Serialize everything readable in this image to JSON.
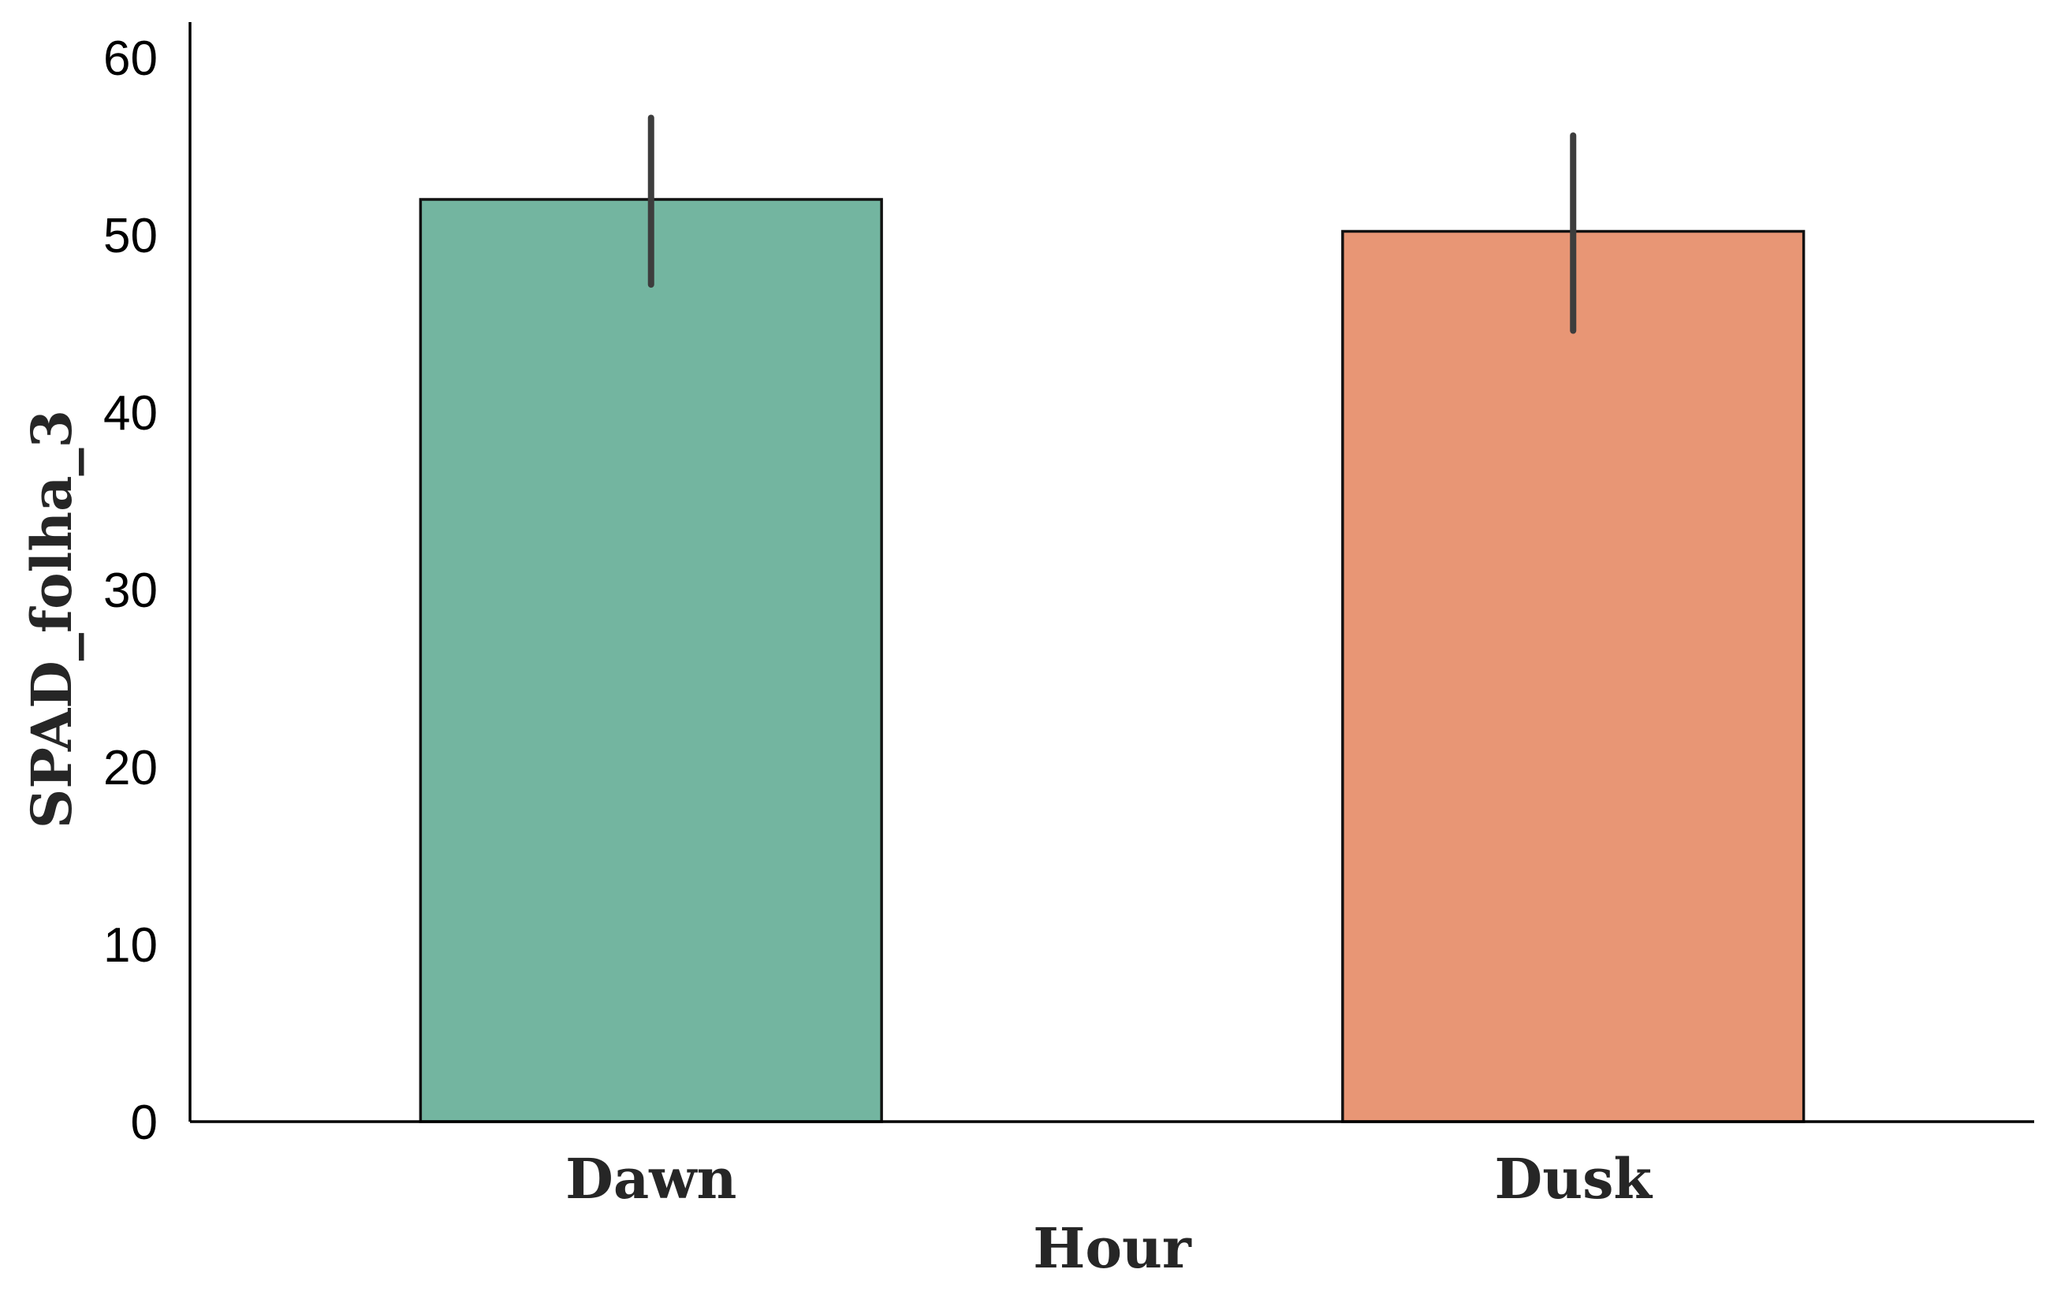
{
  "chart_data": {
    "type": "bar",
    "categories": [
      "Dawn",
      "Dusk"
    ],
    "values": [
      52.0,
      50.2
    ],
    "error_bars": [
      {
        "low": 47.2,
        "high": 56.6
      },
      {
        "low": 44.6,
        "high": 55.6
      }
    ],
    "colors": [
      "#73b5a0",
      "#e89675"
    ],
    "bar_edge_color": "#111111",
    "errorbar_color": "#3d3d3d",
    "xlabel": "Hour",
    "ylabel": "SPAD_folha_3",
    "ylim": [
      0,
      62
    ],
    "yticks": [
      0,
      10,
      20,
      30,
      40,
      50,
      60
    ],
    "grid": false
  }
}
